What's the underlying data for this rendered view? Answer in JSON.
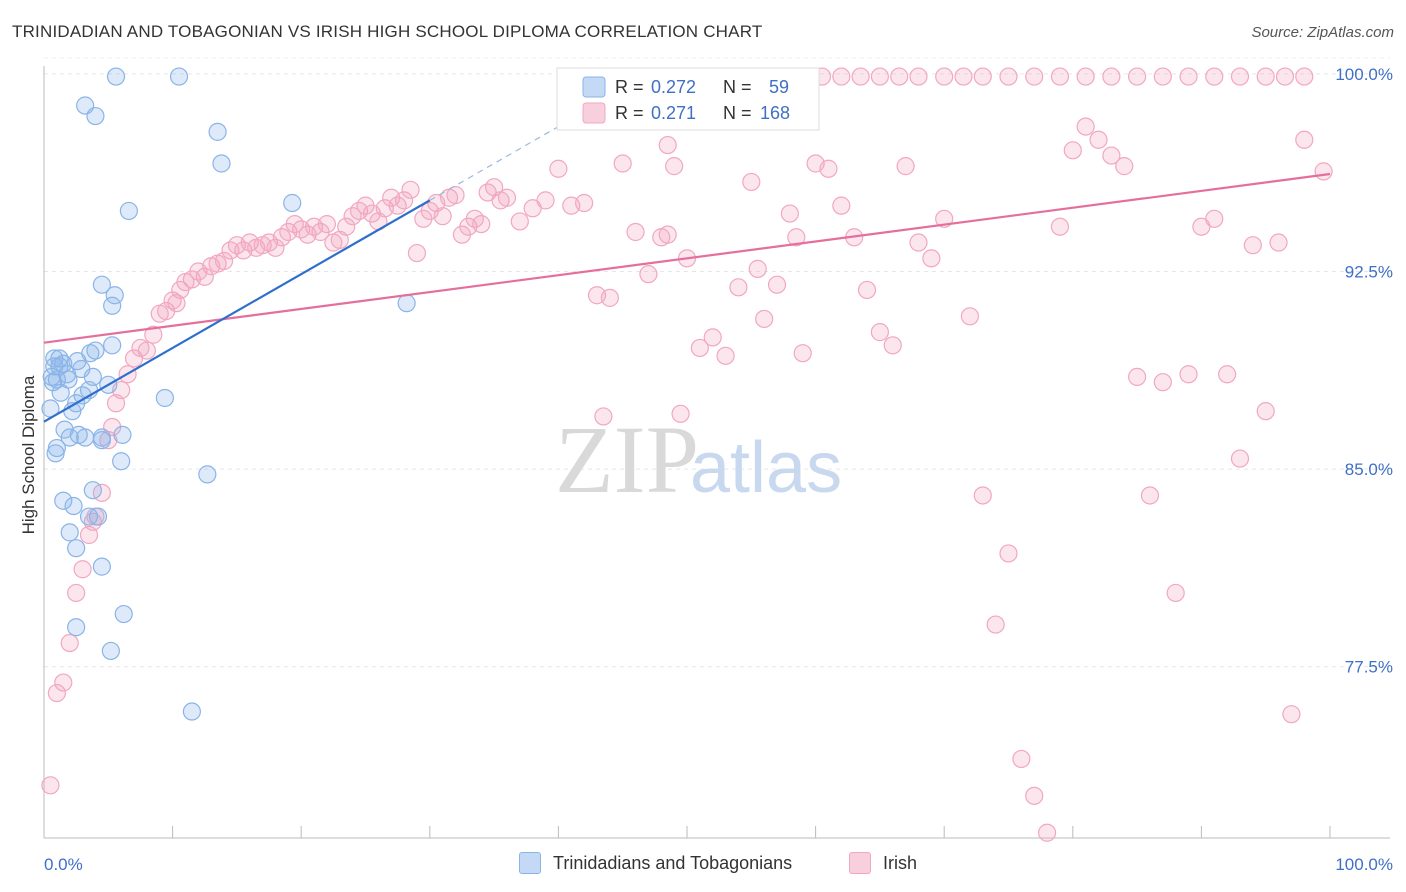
{
  "title": "TRINIDADIAN AND TOBAGONIAN VS IRISH HIGH SCHOOL DIPLOMA CORRELATION CHART",
  "source": "Source: ZipAtlas.com",
  "watermark": {
    "zip": "ZIP",
    "atlas": "atlas"
  },
  "chart_data": {
    "type": "scatter",
    "ylabel": "High School Diploma",
    "xlim": [
      0,
      100
    ],
    "ylim": [
      71.0,
      100.3
    ],
    "y_ticks": [
      77.5,
      85.0,
      92.5,
      100.0
    ],
    "y_tick_labels": [
      "77.5%",
      "85.0%",
      "92.5%",
      "100.0%"
    ],
    "x_tick_labels": [
      "0.0%",
      "100.0%"
    ],
    "grid": true,
    "legend_top": {
      "rows": [
        {
          "r_label": "R =",
          "r": "0.272",
          "n_label": "N =",
          "n": "59"
        },
        {
          "r_label": "R =",
          "r": "0.271",
          "n_label": "N =",
          "n": "168"
        }
      ]
    },
    "series": [
      {
        "name": "Trinidadians and Tobagonians",
        "color": "#8ab4e8",
        "line_color": "#2f6fcc",
        "trend": {
          "x0": 0,
          "y0": 86.8,
          "x1": 30,
          "y1": 95.2,
          "dash_to_x": 45,
          "dash_to_y": 99.4
        },
        "points": [
          [
            0.5,
            87.3
          ],
          [
            0.8,
            88.9
          ],
          [
            0.6,
            88.5
          ],
          [
            0.7,
            88.3
          ],
          [
            1.2,
            89.2
          ],
          [
            1.5,
            89.0
          ],
          [
            1.8,
            88.6
          ],
          [
            1.0,
            88.4
          ],
          [
            1.3,
            87.9
          ],
          [
            1.6,
            86.5
          ],
          [
            2.0,
            86.2
          ],
          [
            2.2,
            87.2
          ],
          [
            2.5,
            87.5
          ],
          [
            2.7,
            86.3
          ],
          [
            3.0,
            87.8
          ],
          [
            3.2,
            86.2
          ],
          [
            3.5,
            88.0
          ],
          [
            3.8,
            88.5
          ],
          [
            4.0,
            89.5
          ],
          [
            4.5,
            86.1
          ],
          [
            5.0,
            88.2
          ],
          [
            5.3,
            89.7
          ],
          [
            1.0,
            85.8
          ],
          [
            1.5,
            83.8
          ],
          [
            2.0,
            82.6
          ],
          [
            2.3,
            83.6
          ],
          [
            2.5,
            82.0
          ],
          [
            3.5,
            83.2
          ],
          [
            3.8,
            84.2
          ],
          [
            4.5,
            81.3
          ],
          [
            2.5,
            79.0
          ],
          [
            5.2,
            78.1
          ],
          [
            6.2,
            79.5
          ],
          [
            11.5,
            75.8
          ],
          [
            4.2,
            83.2
          ],
          [
            6.0,
            85.3
          ],
          [
            12.7,
            84.8
          ],
          [
            4.5,
            86.2
          ],
          [
            5.6,
            99.9
          ],
          [
            10.5,
            99.9
          ],
          [
            3.2,
            98.8
          ],
          [
            4.0,
            98.4
          ],
          [
            13.5,
            97.8
          ],
          [
            13.8,
            96.6
          ],
          [
            6.6,
            94.8
          ],
          [
            4.5,
            92.0
          ],
          [
            5.5,
            91.6
          ],
          [
            5.3,
            91.2
          ],
          [
            6.1,
            86.3
          ],
          [
            9.4,
            87.7
          ],
          [
            19.3,
            95.1
          ],
          [
            28.2,
            91.3
          ],
          [
            0.8,
            89.2
          ],
          [
            1.2,
            88.9
          ],
          [
            1.9,
            88.4
          ],
          [
            2.6,
            89.1
          ],
          [
            3.6,
            89.4
          ],
          [
            2.9,
            88.8
          ],
          [
            0.9,
            85.6
          ]
        ]
      },
      {
        "name": "Irish",
        "color": "#f2a7c0",
        "line_color": "#e56f9c",
        "trend": {
          "x0": 0,
          "y0": 89.8,
          "x1": 100,
          "y1": 96.2
        },
        "points": [
          [
            0.5,
            73.0
          ],
          [
            1.0,
            76.5
          ],
          [
            1.5,
            76.9
          ],
          [
            2.0,
            78.4
          ],
          [
            2.5,
            80.3
          ],
          [
            3.0,
            81.2
          ],
          [
            3.5,
            82.5
          ],
          [
            3.8,
            83.0
          ],
          [
            4.0,
            83.2
          ],
          [
            4.5,
            84.1
          ],
          [
            5.0,
            86.1
          ],
          [
            5.3,
            86.6
          ],
          [
            5.6,
            87.5
          ],
          [
            6.0,
            88.0
          ],
          [
            6.5,
            88.6
          ],
          [
            7.0,
            89.2
          ],
          [
            7.5,
            89.6
          ],
          [
            8.0,
            89.5
          ],
          [
            8.5,
            90.1
          ],
          [
            9.0,
            90.9
          ],
          [
            9.5,
            91.0
          ],
          [
            10.0,
            91.4
          ],
          [
            10.3,
            91.3
          ],
          [
            10.6,
            91.8
          ],
          [
            11.0,
            92.1
          ],
          [
            11.5,
            92.2
          ],
          [
            12.0,
            92.5
          ],
          [
            12.5,
            92.3
          ],
          [
            13.0,
            92.7
          ],
          [
            13.5,
            92.8
          ],
          [
            14.0,
            92.9
          ],
          [
            14.5,
            93.3
          ],
          [
            15.0,
            93.5
          ],
          [
            15.5,
            93.3
          ],
          [
            16.0,
            93.6
          ],
          [
            16.5,
            93.4
          ],
          [
            17.0,
            93.5
          ],
          [
            17.5,
            93.6
          ],
          [
            18.0,
            93.4
          ],
          [
            18.5,
            93.8
          ],
          [
            19.0,
            94.0
          ],
          [
            19.5,
            94.3
          ],
          [
            20.0,
            94.1
          ],
          [
            20.5,
            93.9
          ],
          [
            21.0,
            94.2
          ],
          [
            21.5,
            94.0
          ],
          [
            22.0,
            94.3
          ],
          [
            22.5,
            93.6
          ],
          [
            23.0,
            93.7
          ],
          [
            23.5,
            94.2
          ],
          [
            24.0,
            94.6
          ],
          [
            24.5,
            94.8
          ],
          [
            25.0,
            95.0
          ],
          [
            25.5,
            94.7
          ],
          [
            26.0,
            94.4
          ],
          [
            26.5,
            94.9
          ],
          [
            27.0,
            95.3
          ],
          [
            27.5,
            95.0
          ],
          [
            28.0,
            95.2
          ],
          [
            28.5,
            95.6
          ],
          [
            29.0,
            93.2
          ],
          [
            29.5,
            94.5
          ],
          [
            30.0,
            94.8
          ],
          [
            30.5,
            95.1
          ],
          [
            31.0,
            94.6
          ],
          [
            31.5,
            95.3
          ],
          [
            32.0,
            95.4
          ],
          [
            32.5,
            93.9
          ],
          [
            33.0,
            94.2
          ],
          [
            33.5,
            94.5
          ],
          [
            34.0,
            94.3
          ],
          [
            34.5,
            95.5
          ],
          [
            35.0,
            95.7
          ],
          [
            35.5,
            95.2
          ],
          [
            36.0,
            95.3
          ],
          [
            37.0,
            94.4
          ],
          [
            38.0,
            94.9
          ],
          [
            39.0,
            95.2
          ],
          [
            40.0,
            96.4
          ],
          [
            41.0,
            95.0
          ],
          [
            42.0,
            95.1
          ],
          [
            43.0,
            91.6
          ],
          [
            44.0,
            91.5
          ],
          [
            45.0,
            96.6
          ],
          [
            46.0,
            94.0
          ],
          [
            47.0,
            92.4
          ],
          [
            48.0,
            93.8
          ],
          [
            48.5,
            93.9
          ],
          [
            49.0,
            96.5
          ],
          [
            50.0,
            93.0
          ],
          [
            51.0,
            89.6
          ],
          [
            52.0,
            90.0
          ],
          [
            53.0,
            89.3
          ],
          [
            54.0,
            91.9
          ],
          [
            55.0,
            95.9
          ],
          [
            55.5,
            92.6
          ],
          [
            56.0,
            90.7
          ],
          [
            57.0,
            92.0
          ],
          [
            58.0,
            94.7
          ],
          [
            58.5,
            93.8
          ],
          [
            59.0,
            89.4
          ],
          [
            60.0,
            96.6
          ],
          [
            61.0,
            96.4
          ],
          [
            62.0,
            95.0
          ],
          [
            63.0,
            93.8
          ],
          [
            64.0,
            91.8
          ],
          [
            65.0,
            90.2
          ],
          [
            66.0,
            89.7
          ],
          [
            67.0,
            96.5
          ],
          [
            68.0,
            93.6
          ],
          [
            69.0,
            93.0
          ],
          [
            70.0,
            94.5
          ],
          [
            72.0,
            90.8
          ],
          [
            73.0,
            84.0
          ],
          [
            74.0,
            79.1
          ],
          [
            75.0,
            81.8
          ],
          [
            76.0,
            74.0
          ],
          [
            77.0,
            72.6
          ],
          [
            78.0,
            71.2
          ],
          [
            79.0,
            94.2
          ],
          [
            80.0,
            97.1
          ],
          [
            81.0,
            98.0
          ],
          [
            82.0,
            97.5
          ],
          [
            83.0,
            96.9
          ],
          [
            84.0,
            96.5
          ],
          [
            85.0,
            88.5
          ],
          [
            86.0,
            84.0
          ],
          [
            87.0,
            88.3
          ],
          [
            88.0,
            80.3
          ],
          [
            89.0,
            88.6
          ],
          [
            90.0,
            94.2
          ],
          [
            91.0,
            94.5
          ],
          [
            92.0,
            88.6
          ],
          [
            93.0,
            85.4
          ],
          [
            94.0,
            93.5
          ],
          [
            95.0,
            87.2
          ],
          [
            96.0,
            93.6
          ],
          [
            97.0,
            75.7
          ],
          [
            98.0,
            97.5
          ],
          [
            99.5,
            96.3
          ],
          [
            47.0,
            98.2
          ],
          [
            48.5,
            97.3
          ],
          [
            62.0,
            99.9
          ],
          [
            63.5,
            99.9
          ],
          [
            65.0,
            99.9
          ],
          [
            66.5,
            99.9
          ],
          [
            68.0,
            99.9
          ],
          [
            70.0,
            99.9
          ],
          [
            71.5,
            99.9
          ],
          [
            73.0,
            99.9
          ],
          [
            75.0,
            99.9
          ],
          [
            77.0,
            99.9
          ],
          [
            79.0,
            99.9
          ],
          [
            81.0,
            99.9
          ],
          [
            83.0,
            99.9
          ],
          [
            85.0,
            99.9
          ],
          [
            87.0,
            99.9
          ],
          [
            89.0,
            99.9
          ],
          [
            91.0,
            99.9
          ],
          [
            93.0,
            99.9
          ],
          [
            95.0,
            99.9
          ],
          [
            96.5,
            99.9
          ],
          [
            98.0,
            99.9
          ],
          [
            57.0,
            99.9
          ],
          [
            59.0,
            99.9
          ],
          [
            60.5,
            99.9
          ],
          [
            43.5,
            87.0
          ],
          [
            49.5,
            87.1
          ]
        ]
      }
    ]
  }
}
